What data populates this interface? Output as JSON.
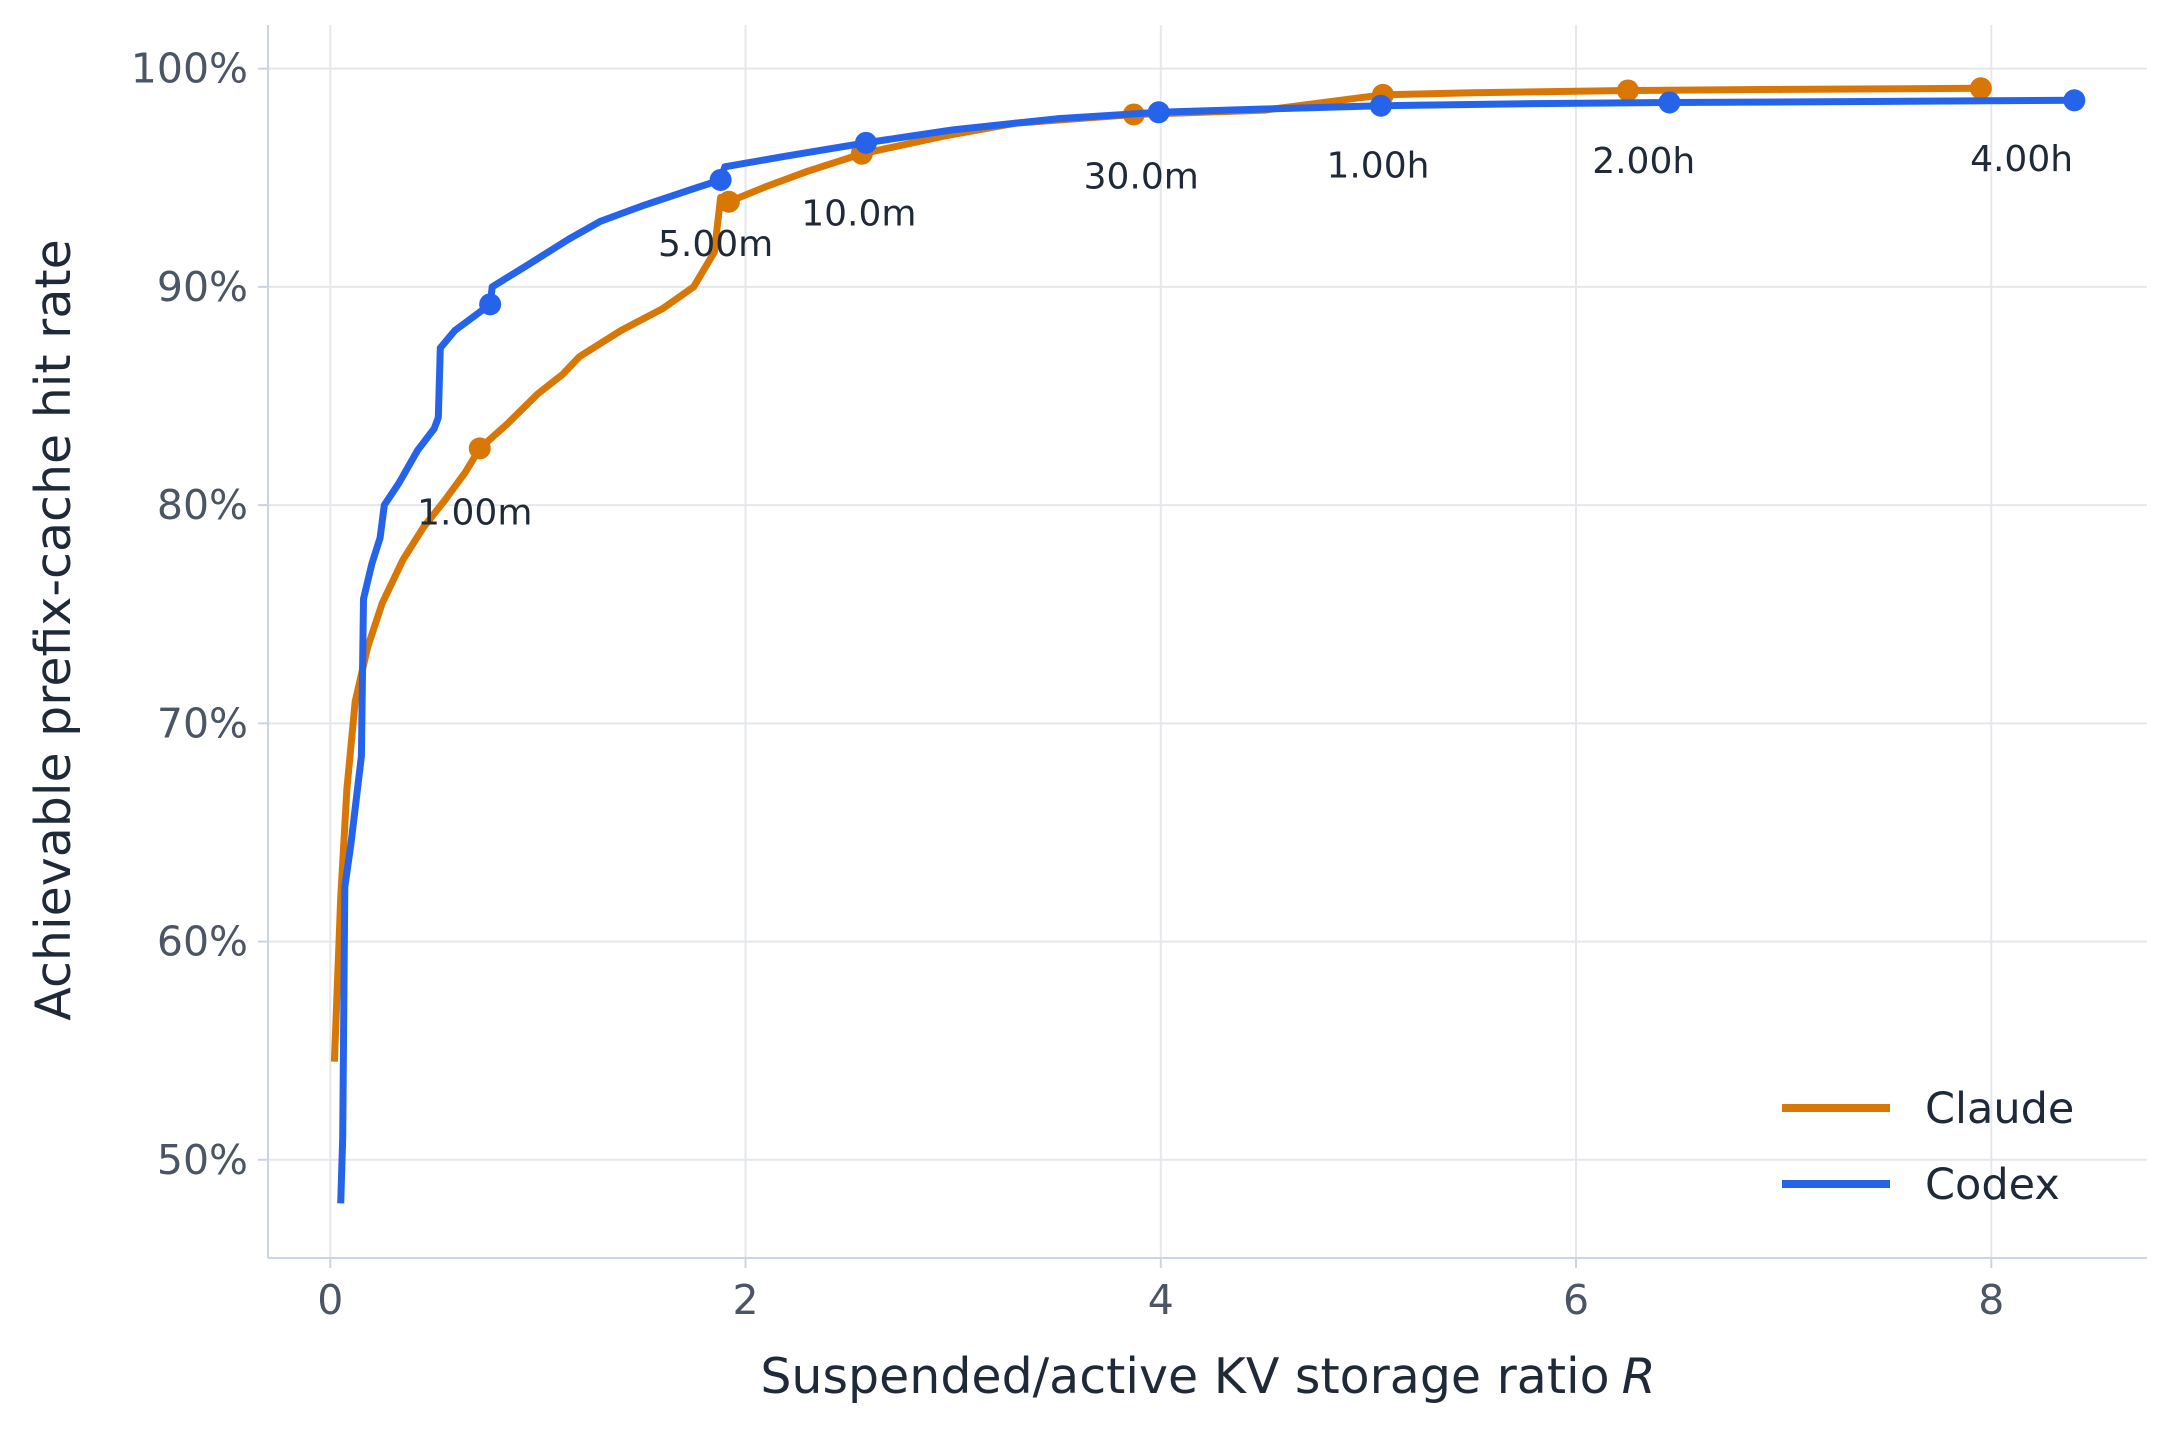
{
  "chart_data": {
    "type": "line",
    "xlabel": "Suspended/active KV storage ratio",
    "xlabel_var": "R",
    "ylabel": "Achievable prefix-cache hit rate",
    "xlim": [
      -0.3,
      8.75
    ],
    "ylim": [
      0.455,
      1.02
    ],
    "xticks": [
      0,
      2,
      4,
      6,
      8
    ],
    "xtick_labels": [
      "0",
      "2",
      "4",
      "6",
      "8"
    ],
    "yticks": [
      0.5,
      0.6,
      0.7,
      0.8,
      0.9,
      1.0
    ],
    "ytick_labels": [
      "50%",
      "60%",
      "70%",
      "80%",
      "90%",
      "100%"
    ],
    "grid": true,
    "legend_position": "lower-right",
    "series": [
      {
        "name": "Claude",
        "color": "#d97706",
        "points": [
          [
            0.02,
            0.545
          ],
          [
            0.05,
            0.62
          ],
          [
            0.08,
            0.67
          ],
          [
            0.12,
            0.71
          ],
          [
            0.18,
            0.735
          ],
          [
            0.25,
            0.755
          ],
          [
            0.35,
            0.775
          ],
          [
            0.45,
            0.79
          ],
          [
            0.55,
            0.802
          ],
          [
            0.65,
            0.815
          ],
          [
            0.72,
            0.826
          ],
          [
            0.85,
            0.837
          ],
          [
            1.0,
            0.851
          ],
          [
            1.12,
            0.86
          ],
          [
            1.2,
            0.868
          ],
          [
            1.4,
            0.88
          ],
          [
            1.6,
            0.89
          ],
          [
            1.75,
            0.9
          ],
          [
            1.85,
            0.916
          ],
          [
            1.88,
            0.941
          ],
          [
            1.92,
            0.939
          ],
          [
            2.1,
            0.946
          ],
          [
            2.3,
            0.953
          ],
          [
            2.56,
            0.961
          ],
          [
            2.95,
            0.969
          ],
          [
            3.3,
            0.975
          ],
          [
            3.87,
            0.979
          ],
          [
            4.5,
            0.981
          ],
          [
            5.07,
            0.988
          ],
          [
            5.5,
            0.989
          ],
          [
            6.25,
            0.99
          ],
          [
            7.0,
            0.9905
          ],
          [
            7.95,
            0.991
          ]
        ],
        "markers": [
          [
            0.72,
            0.826
          ],
          [
            1.92,
            0.939
          ],
          [
            2.56,
            0.961
          ],
          [
            3.87,
            0.979
          ],
          [
            5.07,
            0.988
          ],
          [
            6.25,
            0.99
          ],
          [
            7.95,
            0.991
          ]
        ]
      },
      {
        "name": "Codex",
        "color": "#2563eb",
        "points": [
          [
            0.05,
            0.48
          ],
          [
            0.06,
            0.51
          ],
          [
            0.07,
            0.625
          ],
          [
            0.1,
            0.645
          ],
          [
            0.15,
            0.685
          ],
          [
            0.16,
            0.757
          ],
          [
            0.2,
            0.773
          ],
          [
            0.24,
            0.785
          ],
          [
            0.26,
            0.8
          ],
          [
            0.33,
            0.81
          ],
          [
            0.42,
            0.825
          ],
          [
            0.5,
            0.835
          ],
          [
            0.52,
            0.84
          ],
          [
            0.53,
            0.872
          ],
          [
            0.6,
            0.88
          ],
          [
            0.77,
            0.892
          ],
          [
            0.78,
            0.9
          ],
          [
            0.95,
            0.91
          ],
          [
            1.15,
            0.922
          ],
          [
            1.3,
            0.93
          ],
          [
            1.5,
            0.937
          ],
          [
            1.75,
            0.945
          ],
          [
            1.88,
            0.949
          ],
          [
            1.9,
            0.955
          ],
          [
            2.2,
            0.96
          ],
          [
            2.58,
            0.966
          ],
          [
            3.0,
            0.972
          ],
          [
            3.5,
            0.977
          ],
          [
            3.99,
            0.98
          ],
          [
            4.5,
            0.9815
          ],
          [
            5.06,
            0.983
          ],
          [
            5.8,
            0.984
          ],
          [
            6.45,
            0.9845
          ],
          [
            7.5,
            0.985
          ],
          [
            8.4,
            0.9855
          ]
        ],
        "markers": [
          [
            0.77,
            0.892
          ],
          [
            1.88,
            0.949
          ],
          [
            2.58,
            0.966
          ],
          [
            3.99,
            0.98
          ],
          [
            5.06,
            0.983
          ],
          [
            6.45,
            0.9845
          ],
          [
            8.4,
            0.9855
          ]
        ]
      }
    ],
    "annotations": [
      {
        "text": "1.00m",
        "x": 0.72,
        "y": 0.826
      },
      {
        "text": "5.00m",
        "x": 1.88,
        "y": 0.949
      },
      {
        "text": "10.0m",
        "x": 2.57,
        "y": 0.963
      },
      {
        "text": "30.0m",
        "x": 3.93,
        "y": 0.98
      },
      {
        "text": "1.00h",
        "x": 5.07,
        "y": 0.985
      },
      {
        "text": "2.00h",
        "x": 6.35,
        "y": 0.987
      },
      {
        "text": "4.00h",
        "x": 8.17,
        "y": 0.988
      }
    ]
  }
}
